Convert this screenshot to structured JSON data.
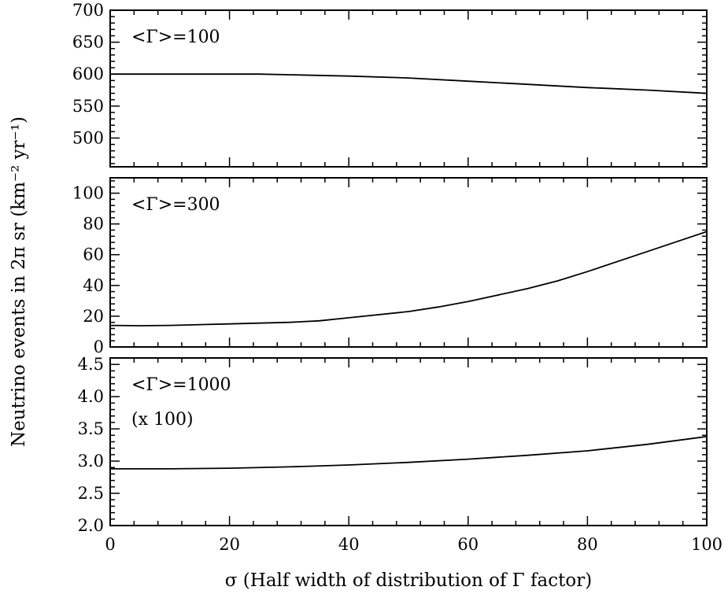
{
  "chart_data": {
    "type": "line",
    "xlabel": "σ (Half width of distribution of Γ factor)",
    "ylabel": "Neutrino events in 2π sr (km⁻² yr⁻¹)",
    "xlim": [
      0,
      100
    ],
    "x_ticks": [
      "0",
      "20",
      "40",
      "60",
      "80",
      "100"
    ],
    "grid": false,
    "panels": [
      {
        "label": "<Γ>=100",
        "note": "",
        "ylim": [
          455,
          700
        ],
        "y_ticks": [
          500,
          550,
          600,
          650,
          700
        ],
        "y_tick_labels": [
          "500",
          "550",
          "600",
          "650",
          "700"
        ],
        "x": [
          0,
          10,
          20,
          25,
          30,
          40,
          50,
          60,
          70,
          80,
          90,
          100
        ],
        "y": [
          600,
          600,
          600,
          600,
          599,
          597,
          594,
          589,
          584,
          579,
          575,
          570
        ]
      },
      {
        "label": "<Γ>=300",
        "note": "",
        "ylim": [
          0,
          110
        ],
        "y_ticks": [
          0,
          20,
          40,
          60,
          80,
          100
        ],
        "y_tick_labels": [
          "0",
          "20",
          "40",
          "60",
          "80",
          "100"
        ],
        "x": [
          0,
          5,
          10,
          20,
          30,
          35,
          40,
          50,
          55,
          60,
          70,
          75,
          80,
          90,
          100
        ],
        "y": [
          14,
          13.8,
          14,
          15,
          16,
          17,
          19,
          23,
          26,
          29.5,
          38,
          43,
          49,
          62,
          75
        ]
      },
      {
        "label": "<Γ>=1000",
        "note": "(x 100)",
        "ylim": [
          2.0,
          4.6
        ],
        "y_ticks": [
          2.0,
          2.5,
          3.0,
          3.5,
          4.0,
          4.5
        ],
        "y_tick_labels": [
          "2.0",
          "2.5",
          "3.0",
          "3.5",
          "4.0",
          "4.5"
        ],
        "x": [
          0,
          10,
          20,
          30,
          40,
          50,
          60,
          70,
          80,
          90,
          100
        ],
        "y": [
          2.88,
          2.88,
          2.89,
          2.91,
          2.94,
          2.98,
          3.03,
          3.09,
          3.16,
          3.26,
          3.38
        ]
      }
    ]
  }
}
